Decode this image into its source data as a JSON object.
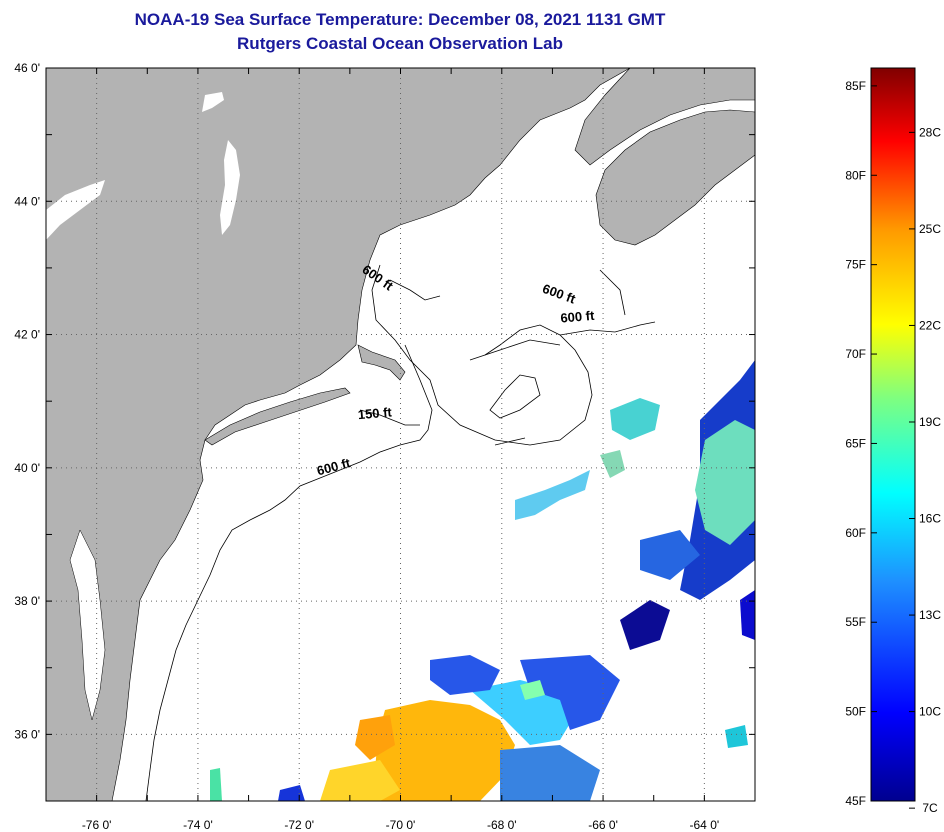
{
  "header": {
    "title": "NOAA-19 Sea Surface Temperature:  December 08, 2021 1131 GMT",
    "subtitle": "Rutgers Coastal Ocean Observation Lab"
  },
  "map": {
    "lon_range": [
      -77,
      -63
    ],
    "lat_range": [
      35,
      46
    ],
    "lon_ticks": [
      {
        "value": -76,
        "label": "-76 0'"
      },
      {
        "value": -74,
        "label": "-74 0'"
      },
      {
        "value": -72,
        "label": "-72 0'"
      },
      {
        "value": -70,
        "label": "-70 0'"
      },
      {
        "value": -68,
        "label": "-68 0'"
      },
      {
        "value": -66,
        "label": "-66 0'"
      },
      {
        "value": -64,
        "label": "-64 0'"
      }
    ],
    "lat_ticks": [
      {
        "value": 46,
        "label": "46 0'"
      },
      {
        "value": 44,
        "label": "44 0'"
      },
      {
        "value": 42,
        "label": "42 0'"
      },
      {
        "value": 40,
        "label": "40 0'"
      },
      {
        "value": 38,
        "label": "38 0'"
      },
      {
        "value": 36,
        "label": "36 0'"
      }
    ],
    "contour_labels": [
      {
        "text": "600 ft",
        "lon": -70.5,
        "lat": 42.8,
        "rotate": 35
      },
      {
        "text": "600 ft",
        "lon": -66.9,
        "lat": 42.55,
        "rotate": 20
      },
      {
        "text": "600 ft",
        "lon": -66.5,
        "lat": 42.2,
        "rotate": -5
      },
      {
        "text": "150 ft",
        "lon": -70.5,
        "lat": 40.75,
        "rotate": -5
      },
      {
        "text": "600 ft",
        "lon": -71.3,
        "lat": 39.95,
        "rotate": -15
      }
    ],
    "colors": {
      "land": "#b3b3b3",
      "ocean": "#ffffff"
    }
  },
  "colorbar": {
    "fahrenheit_labels": [
      "85F",
      "80F",
      "75F",
      "70F",
      "65F",
      "60F",
      "55F",
      "50F",
      "45F"
    ],
    "celsius_labels": [
      "28C",
      "25C",
      "22C",
      "19C",
      "16C",
      "13C",
      "10C",
      "7C"
    ],
    "range_f": [
      45,
      86
    ]
  }
}
